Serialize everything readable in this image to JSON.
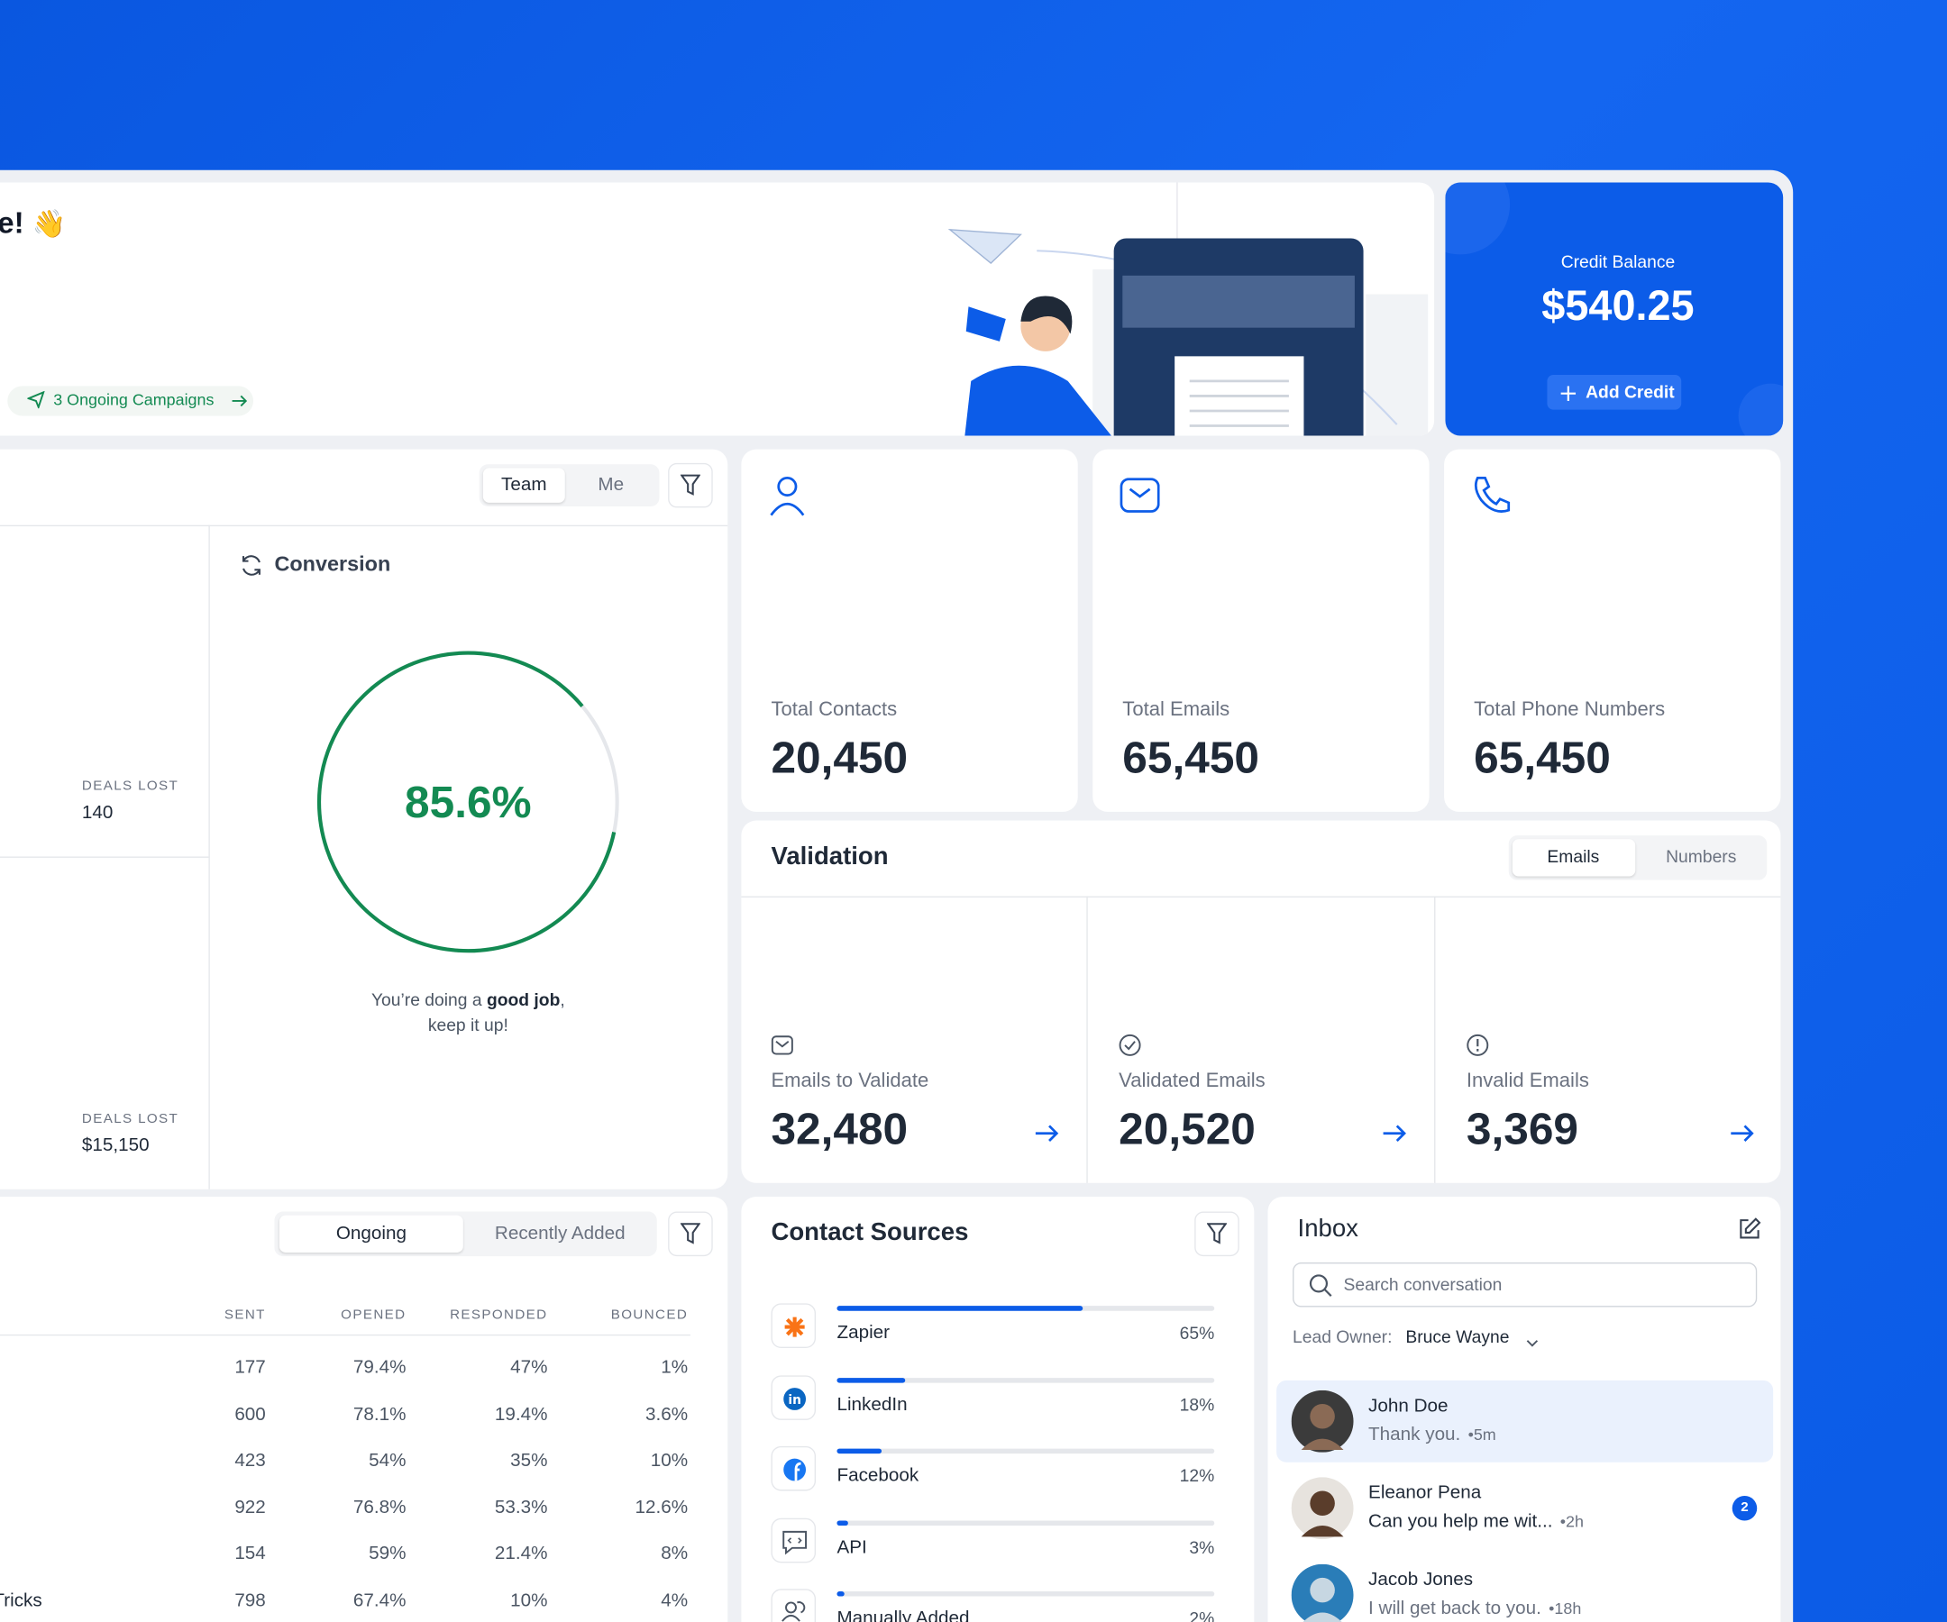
{
  "hero": {
    "greeting": "e!",
    "emoji": "👋",
    "campaigns": "3 Ongoing Campaigns"
  },
  "credit": {
    "title": "Credit Balance",
    "amount": "$540.25",
    "button": "Add Credit"
  },
  "deals": {
    "tabs": [
      "Team",
      "Me"
    ],
    "lost": [
      {
        "label": "DEALS LOST",
        "value": "140"
      },
      {
        "label": "DEALS LOST",
        "value": "$15,150"
      }
    ]
  },
  "conversion": {
    "title": "Conversion",
    "rate": {
      "value": 85.6,
      "label": "85.6%"
    },
    "message": [
      "You’re doing a ",
      "good job",
      ",",
      "keep it up!"
    ]
  },
  "stats": [
    {
      "label": "Total Contacts",
      "value": "20,450"
    },
    {
      "label": "Total Emails",
      "value": "65,450"
    },
    {
      "label": "Total Phone Numbers",
      "value": "65,450"
    }
  ],
  "validation": {
    "title": "Validation",
    "tabs": [
      "Emails",
      "Numbers"
    ],
    "items": [
      {
        "label": "Emails to Validate",
        "value": "32,480"
      },
      {
        "label": "Validated Emails",
        "value": "20,520"
      },
      {
        "label": "Invalid Emails",
        "value": "3,369"
      }
    ]
  },
  "campaigns": {
    "tabs": [
      "Ongoing",
      "Recently Added"
    ],
    "columns": [
      "SENT",
      "OPENED",
      "RESPONDED",
      "BOUNCED"
    ],
    "rows": [
      {
        "cells": [
          "177",
          "79.4%",
          "47%",
          "1%"
        ]
      },
      {
        "cells": [
          "600",
          "78.1%",
          "19.4%",
          "3.6%"
        ]
      },
      {
        "cells": [
          "423",
          "54%",
          "35%",
          "10%"
        ]
      },
      {
        "cells": [
          "922",
          "76.8%",
          "53.3%",
          "12.6%"
        ]
      },
      {
        "cells": [
          "154",
          "59%",
          "21.4%",
          "8%"
        ]
      },
      {
        "name": "Tricks",
        "cells": [
          "798",
          "67.4%",
          "10%",
          "4%"
        ]
      }
    ]
  },
  "sources": {
    "title": "Contact Sources",
    "items": [
      {
        "name": "Zapier",
        "value": 65,
        "label": "65%"
      },
      {
        "name": "LinkedIn",
        "value": 18,
        "label": "18%"
      },
      {
        "name": "Facebook",
        "value": 12,
        "label": "12%"
      },
      {
        "name": "API",
        "value": 3,
        "label": "3%"
      },
      {
        "name": "Manually Added",
        "value": 2,
        "label": "2%"
      }
    ]
  },
  "inbox": {
    "title": "Inbox",
    "search": "Search conversation",
    "lead_owner_label": "Lead Owner:",
    "lead_owner": "Bruce Wayne",
    "conversations": [
      {
        "name": "John Doe",
        "message": "Thank you.",
        "time": "•5m"
      },
      {
        "name": "Eleanor Pena",
        "message": "Can you help me wit...",
        "time": "•2h",
        "unread": "2"
      },
      {
        "name": "Jacob Jones",
        "message": "I will get back to you.",
        "time": "•18h"
      }
    ]
  }
}
